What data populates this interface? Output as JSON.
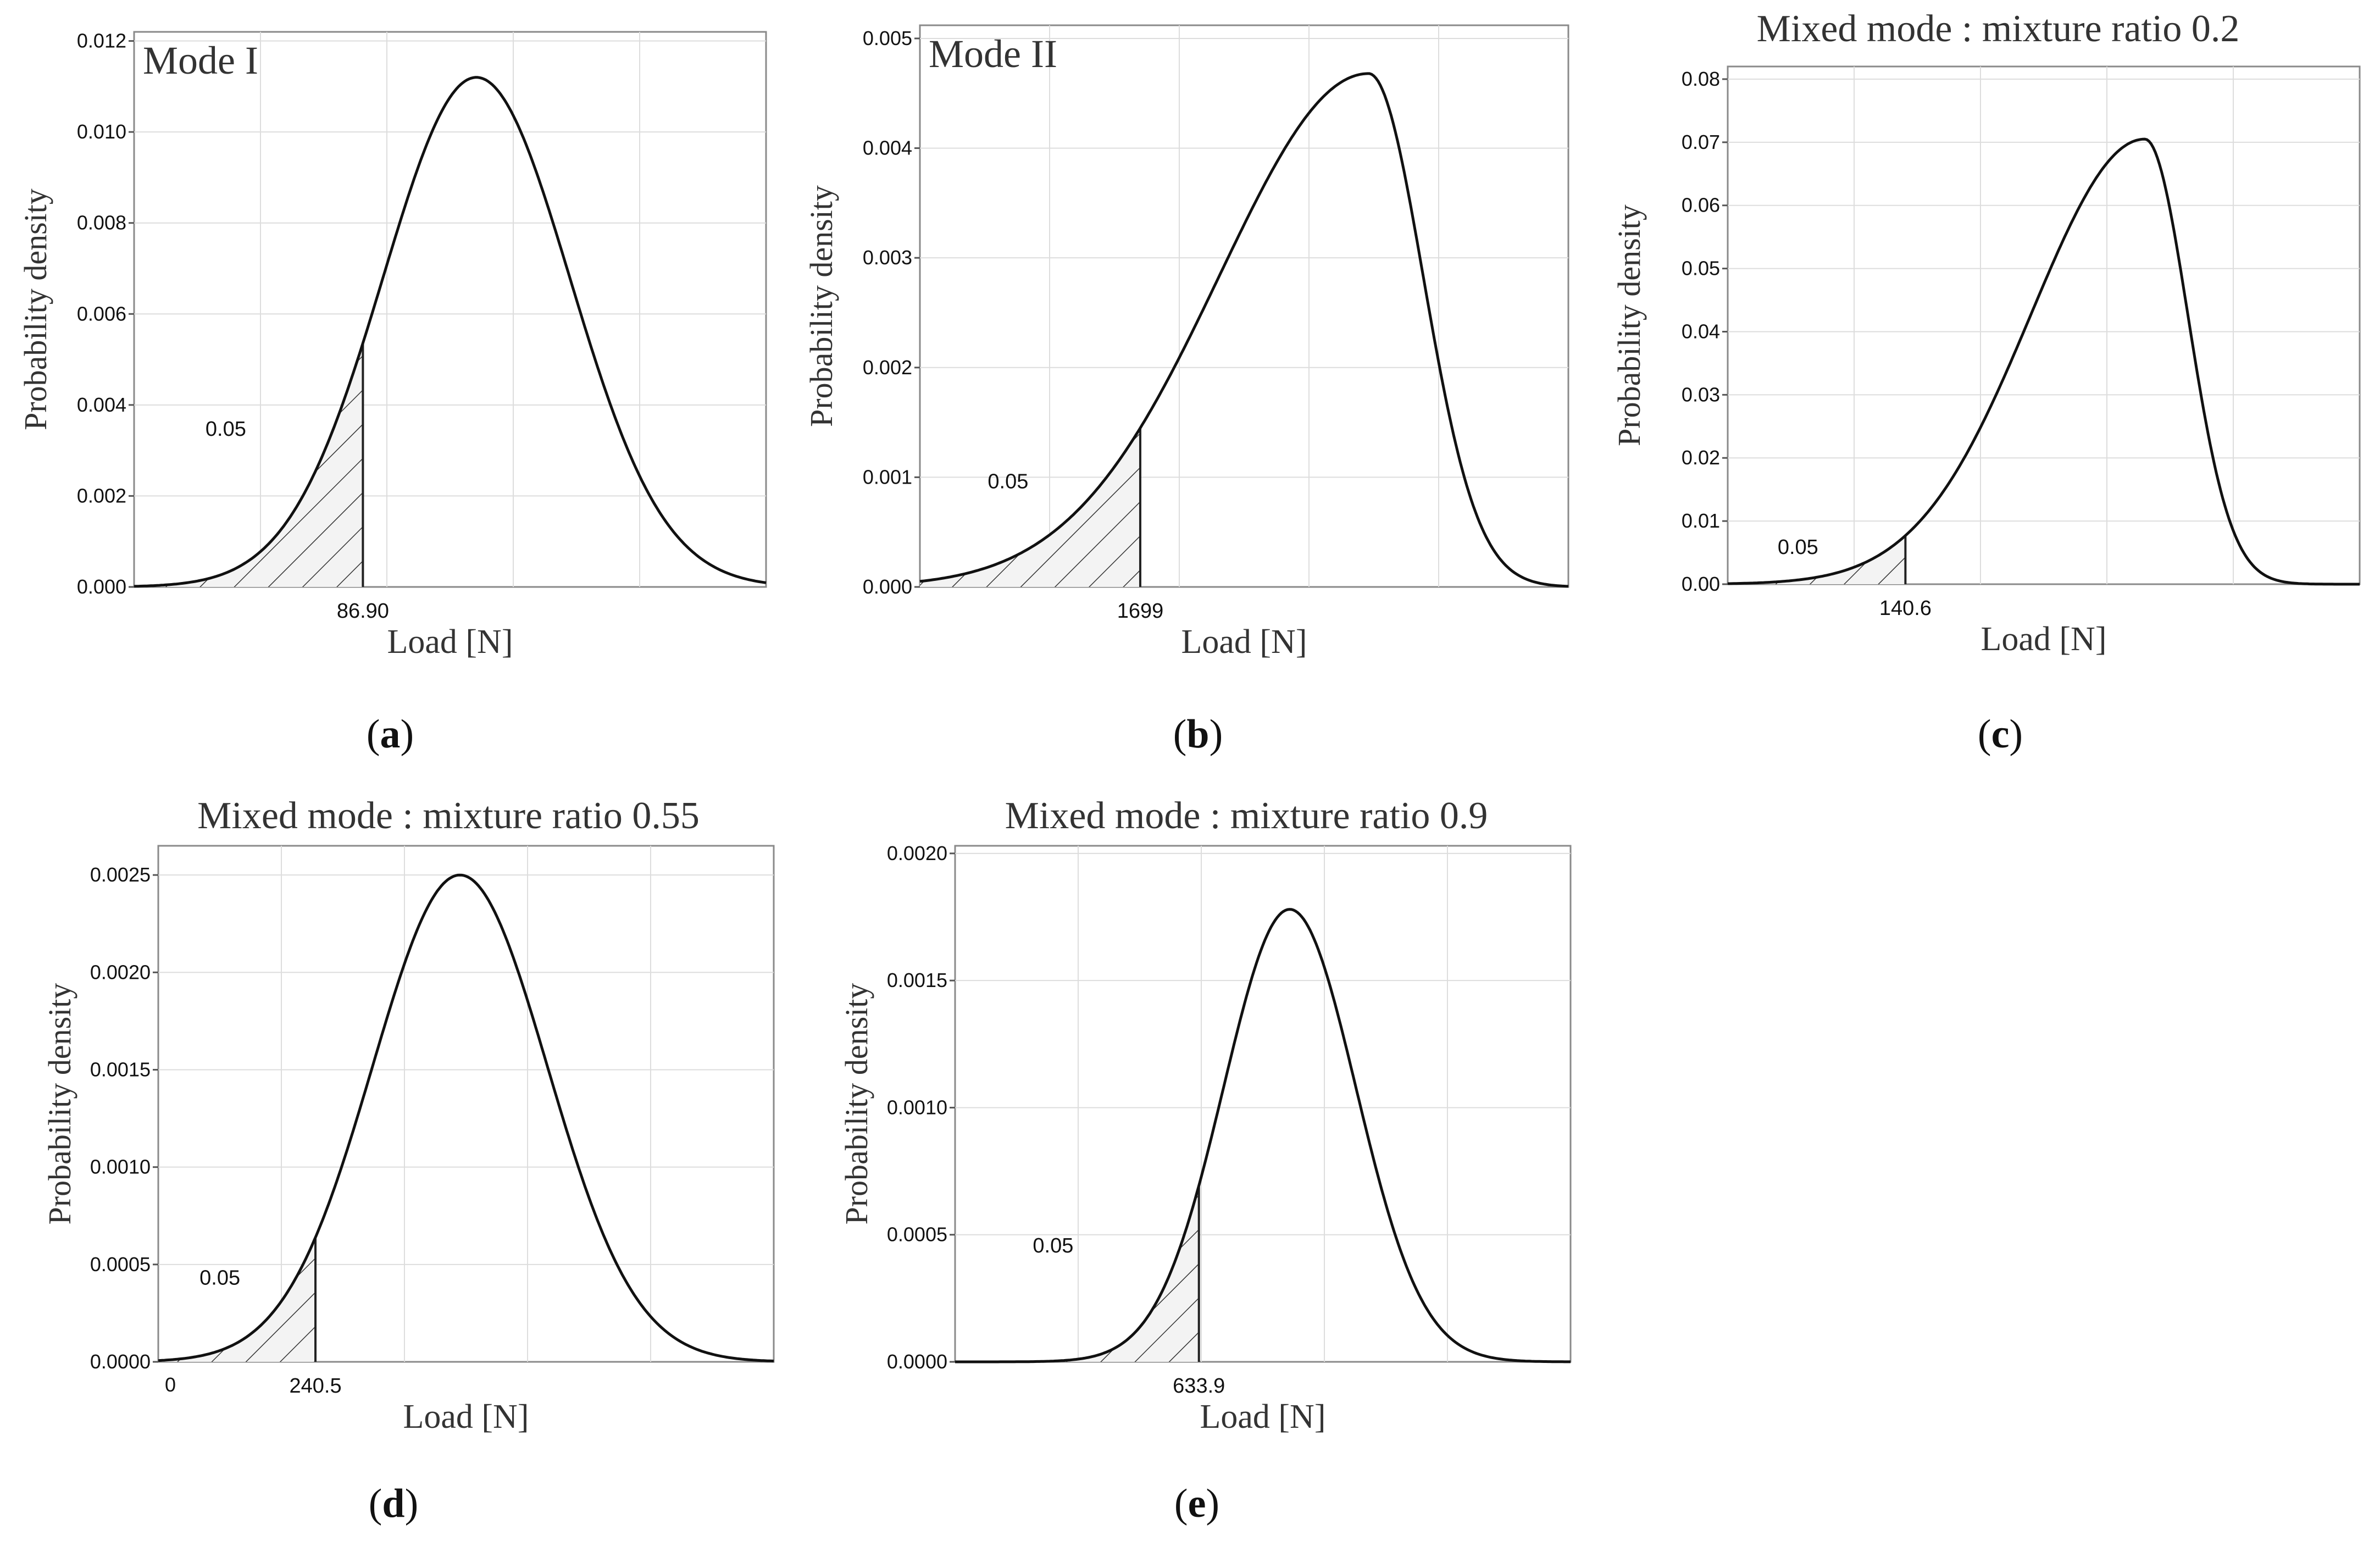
{
  "chart_data": [
    {
      "type": "area",
      "panel": "a",
      "caption_letter": "a",
      "title": "",
      "inset_label": "Mode I",
      "xlabel": "Load [N]",
      "ylabel": "Probability density",
      "yticks": [
        "0.000",
        "0.002",
        "0.004",
        "0.006",
        "0.008",
        "0.010",
        "0.012"
      ],
      "ytick_values": [
        0,
        0.002,
        0.004,
        0.006,
        0.008,
        0.01,
        0.012
      ],
      "ylim": [
        0,
        0.0122
      ],
      "xlim": [
        0,
        240
      ],
      "xticks_shown": [],
      "distribution": "normal",
      "peak_x": 130,
      "peak_density": 0.0112,
      "sigma": 35.5,
      "threshold": 86.9,
      "threshold_label": "86.90",
      "tail_probability": "0.05",
      "grid": true
    },
    {
      "type": "area",
      "panel": "b",
      "caption_letter": "b",
      "title": "",
      "inset_label": "Mode II",
      "xlabel": "Load [N]",
      "ylabel": "Probability density",
      "yticks": [
        "0.000",
        "0.001",
        "0.002",
        "0.003",
        "0.004",
        "0.005"
      ],
      "ytick_values": [
        0,
        0.001,
        0.002,
        0.003,
        0.004,
        0.005
      ],
      "ylim": [
        0,
        0.00512
      ],
      "xlim": [
        0,
        5000
      ],
      "xticks_shown": [],
      "distribution": "left-skewed",
      "peak_x": 3460,
      "peak_density": 0.00468,
      "sigma_left": 1150,
      "sigma_right": 420,
      "threshold": 1699,
      "threshold_label": "1699",
      "tail_probability": "0.05",
      "grid": true
    },
    {
      "type": "area",
      "panel": "c",
      "caption_letter": "c",
      "title": "Mixed mode : mixture ratio 0.2",
      "inset_label": "",
      "xlabel": "Load [N]",
      "ylabel": "Probability density",
      "yticks": [
        "0.00",
        "0.01",
        "0.02",
        "0.03",
        "0.04",
        "0.05",
        "0.06",
        "0.07",
        "0.08"
      ],
      "ytick_values": [
        0,
        0.01,
        0.02,
        0.03,
        0.04,
        0.05,
        0.06,
        0.07,
        0.08
      ],
      "ylim": [
        0,
        0.082
      ],
      "xlim": [
        0,
        500
      ],
      "xticks_shown": [],
      "distribution": "left-skewed",
      "peak_x": 330,
      "peak_density": 0.0705,
      "sigma_left": 90,
      "sigma_right": 34,
      "threshold": 140.6,
      "threshold_label": "140.6",
      "tail_probability": "0.05",
      "grid": true
    },
    {
      "type": "area",
      "panel": "d",
      "caption_letter": "d",
      "title": "Mixed mode : mixture ratio 0.55",
      "inset_label": "",
      "xlabel": "Load [N]",
      "ylabel": "Probability density",
      "yticks": [
        "0.0000",
        "0.0005",
        "0.0010",
        "0.0015",
        "0.0020",
        "0.0025"
      ],
      "ytick_values": [
        0,
        0.0005,
        0.001,
        0.0015,
        0.002,
        0.0025
      ],
      "ylim": [
        0,
        0.00265
      ],
      "xlim": [
        -20,
        1000
      ],
      "xticks_shown": [
        {
          "value": 0,
          "label": "0"
        }
      ],
      "distribution": "normal",
      "peak_x": 480,
      "peak_density": 0.0025,
      "sigma": 145,
      "threshold": 240.5,
      "threshold_label": "240.5",
      "tail_probability": "0.05",
      "grid": true
    },
    {
      "type": "area",
      "panel": "e",
      "caption_letter": "e",
      "title": "Mixed mode : mixture ratio 0.9",
      "inset_label": "",
      "xlabel": "Load [N]",
      "ylabel": "Probability density",
      "yticks": [
        "0.0000",
        "0.0005",
        "0.0010",
        "0.0015",
        "0.0020"
      ],
      "ytick_values": [
        0,
        0.0005,
        0.001,
        0.0015,
        0.002
      ],
      "ylim": [
        0,
        0.00203
      ],
      "xlim": [
        0,
        1600
      ],
      "xticks_shown": [],
      "distribution": "normal",
      "peak_x": 870,
      "peak_density": 0.00178,
      "sigma": 172,
      "threshold": 633.9,
      "threshold_label": "633.9",
      "tail_probability": "0.05",
      "grid": true
    }
  ]
}
